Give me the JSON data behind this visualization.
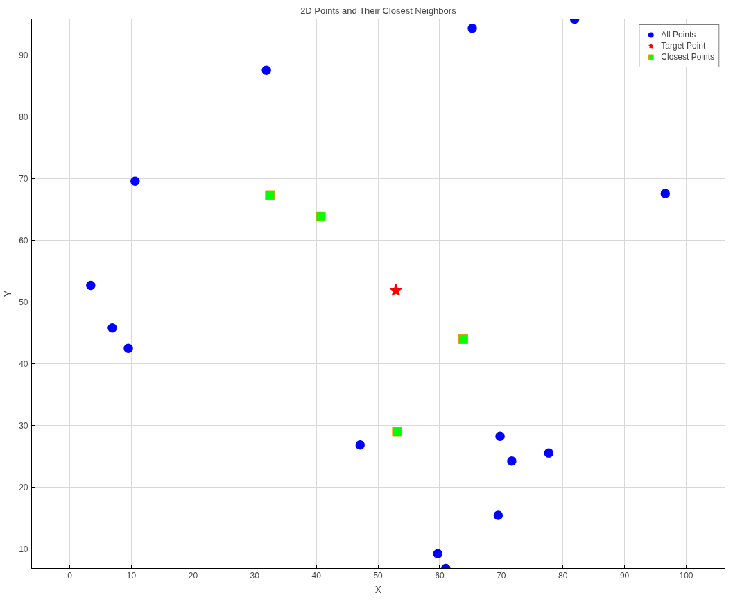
{
  "chart_data": {
    "type": "scatter",
    "title": "2D Points and Their Closest Neighbors",
    "xlabel": "X",
    "ylabel": "Y",
    "xlim": [
      -6.2,
      106.3
    ],
    "ylim": [
      6.8,
      95.9
    ],
    "xticks": [
      0,
      10,
      20,
      30,
      40,
      50,
      60,
      70,
      80,
      90,
      100
    ],
    "yticks": [
      10,
      20,
      30,
      40,
      50,
      60,
      70,
      80,
      90
    ],
    "grid": true,
    "legend": "top right",
    "series": [
      {
        "name": "All Points",
        "color": "#0000ff",
        "marker": "circle",
        "x": [
          81.9,
          65.3,
          31.9,
          10.6,
          96.6,
          3.4,
          6.9,
          9.5,
          47.1,
          69.8,
          71.7,
          77.7,
          69.5,
          59.7,
          61.0
        ],
        "values": [
          95.9,
          94.4,
          87.6,
          69.6,
          67.6,
          52.7,
          45.8,
          42.5,
          26.8,
          28.2,
          24.2,
          25.5,
          15.4,
          9.2,
          6.8
        ]
      },
      {
        "name": "Target Point",
        "color": "#ff0000",
        "marker": "star",
        "x": [
          52.9
        ],
        "values": [
          51.9
        ]
      },
      {
        "name": "Closest Points",
        "color": "#00ff00",
        "marker": "square",
        "x": [
          32.5,
          40.7,
          63.8,
          53.1
        ],
        "values": [
          67.3,
          63.9,
          44.0,
          29.0
        ]
      }
    ]
  }
}
